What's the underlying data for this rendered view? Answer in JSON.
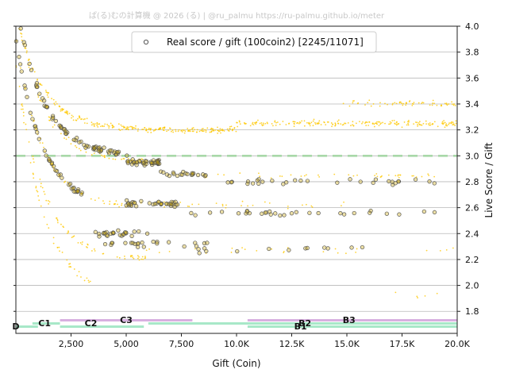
{
  "watermark": "ぱ(る)むの計算機 @ 2026 (る) | @ru_palmu  https://ru-palmu.github.io/meter",
  "chart_data": {
    "type": "scatter",
    "xlabel": "Gift (Coin)",
    "ylabel": "Live Score / Gift",
    "xlim": [
      0,
      20000
    ],
    "ylim": [
      1.63,
      4.0
    ],
    "x_ticks": [
      2500,
      5000,
      7500,
      10000,
      12500,
      15000,
      17500,
      20000
    ],
    "x_tick_labels": [
      "2,500",
      "5,000",
      "7,500",
      "10.0K",
      "12.5K",
      "15.0K",
      "17.5K",
      "20.0K"
    ],
    "y_ticks": [
      1.8,
      2.0,
      2.2,
      2.4,
      2.6,
      2.8,
      3.0,
      3.2,
      3.4,
      3.6,
      3.8,
      4.0
    ],
    "y_tick_labels": [
      "1.8",
      "2.0",
      "2.2",
      "2.4",
      "2.6",
      "2.8",
      "3.0",
      "3.2",
      "3.4",
      "3.6",
      "3.8",
      "4.0"
    ],
    "grid": "horizontal",
    "legend_position": "top-center",
    "reference_line": {
      "y": 3.0,
      "style": "dashed",
      "color": "#a8d8a8"
    },
    "series": [
      {
        "name": "Real score / gift (100coin2) [2245/11071]",
        "marker": "hollow-circle",
        "color": "#ffffff",
        "edge_color": "#555555",
        "bands": [
          {
            "pattern": "decay",
            "a": 3.0,
            "b": 1.2,
            "x_range": [
              0,
              5200
            ],
            "density": 70
          },
          {
            "pattern": "decay",
            "a": 2.6,
            "b": 1.3,
            "x_range": [
              0,
              3000
            ],
            "density": 40
          },
          {
            "pattern": "flat",
            "y": 2.95,
            "x_range": [
              5000,
              6500
            ],
            "density": 40
          },
          {
            "pattern": "flat",
            "y": 2.86,
            "x_range": [
              6500,
              8600
            ],
            "density": 20
          },
          {
            "pattern": "flat",
            "y": 2.8,
            "x_range": [
              9500,
              19500
            ],
            "density": 30
          },
          {
            "pattern": "flat",
            "y": 2.63,
            "x_range": [
              5000,
              7400
            ],
            "density": 35
          },
          {
            "pattern": "flat",
            "y": 2.56,
            "x_range": [
              7400,
              19000
            ],
            "density": 30
          },
          {
            "pattern": "flat",
            "y": 2.4,
            "x_range": [
              3500,
              6000
            ],
            "density": 25
          },
          {
            "pattern": "flat",
            "y": 2.32,
            "x_range": [
              4000,
              9000
            ],
            "density": 20
          },
          {
            "pattern": "flat",
            "y": 2.28,
            "x_range": [
              6000,
              16000
            ],
            "density": 15
          }
        ]
      },
      {
        "name": "",
        "marker": "dot",
        "color": "#ffc800",
        "bands": [
          {
            "pattern": "decay",
            "a": 3.2,
            "b": 0.9,
            "x_range": [
              0,
              10000
            ],
            "density": 260
          },
          {
            "pattern": "flat",
            "y": 3.25,
            "x_range": [
              10000,
              20000
            ],
            "density": 200
          },
          {
            "pattern": "flat",
            "y": 3.4,
            "x_range": [
              14800,
              20000
            ],
            "density": 60
          },
          {
            "pattern": "decay",
            "a": 2.95,
            "b": 1.2,
            "x_range": [
              0,
              6000
            ],
            "density": 60
          },
          {
            "pattern": "flat",
            "y": 2.85,
            "x_range": [
              8000,
              19000
            ],
            "density": 40
          },
          {
            "pattern": "decay",
            "a": 2.6,
            "b": 1.3,
            "x_range": [
              0,
              5000
            ],
            "density": 50
          },
          {
            "pattern": "flat",
            "y": 2.62,
            "x_range": [
              5000,
              15000
            ],
            "density": 30
          },
          {
            "pattern": "decay",
            "a": 2.2,
            "b": 1.5,
            "x_range": [
              0,
              6000
            ],
            "density": 70
          },
          {
            "pattern": "flat",
            "y": 2.27,
            "x_range": [
              5000,
              20000
            ],
            "density": 25
          },
          {
            "pattern": "decay",
            "a": 1.92,
            "b": 1.8,
            "x_range": [
              0,
              3500
            ],
            "density": 40
          },
          {
            "pattern": "flat",
            "y": 1.92,
            "x_range": [
              16000,
              19500
            ],
            "density": 5
          }
        ]
      }
    ],
    "rank_spans": [
      {
        "label": "D",
        "x_range": [
          0,
          1000
        ],
        "color": "#a8e8c8",
        "stack": 0
      },
      {
        "label": "C1",
        "x_range": [
          750,
          2000
        ],
        "color": "#a8e8c8",
        "stack": 1
      },
      {
        "label": "C2",
        "x_range": [
          2000,
          5800
        ],
        "color": "#a8e8c8",
        "stack": 0
      },
      {
        "label": "C3",
        "x_range": [
          2000,
          8000
        ],
        "color": "#d8b0e0",
        "stack": 2
      },
      {
        "label": "B1",
        "x_range": [
          6000,
          20000
        ],
        "color": "#a8e8c8",
        "stack": 1
      },
      {
        "label": "B2",
        "x_range": [
          10500,
          20000
        ],
        "color": "#a8e8c8",
        "stack": 0
      },
      {
        "label": "B3",
        "x_range": [
          10500,
          20000
        ],
        "color": "#d8b0e0",
        "stack": 2
      }
    ],
    "rank_label_positions": [
      {
        "label": "D",
        "x": 0,
        "stack": 0
      },
      {
        "label": "C1",
        "x": 1300,
        "stack": 1
      },
      {
        "label": "C2",
        "x": 3400,
        "stack": 1
      },
      {
        "label": "C3",
        "x": 5000,
        "stack": 2
      },
      {
        "label": "B1",
        "x": 12900,
        "stack": 0
      },
      {
        "label": "B2",
        "x": 13100,
        "stack": 1
      },
      {
        "label": "B3",
        "x": 15100,
        "stack": 2
      }
    ]
  }
}
